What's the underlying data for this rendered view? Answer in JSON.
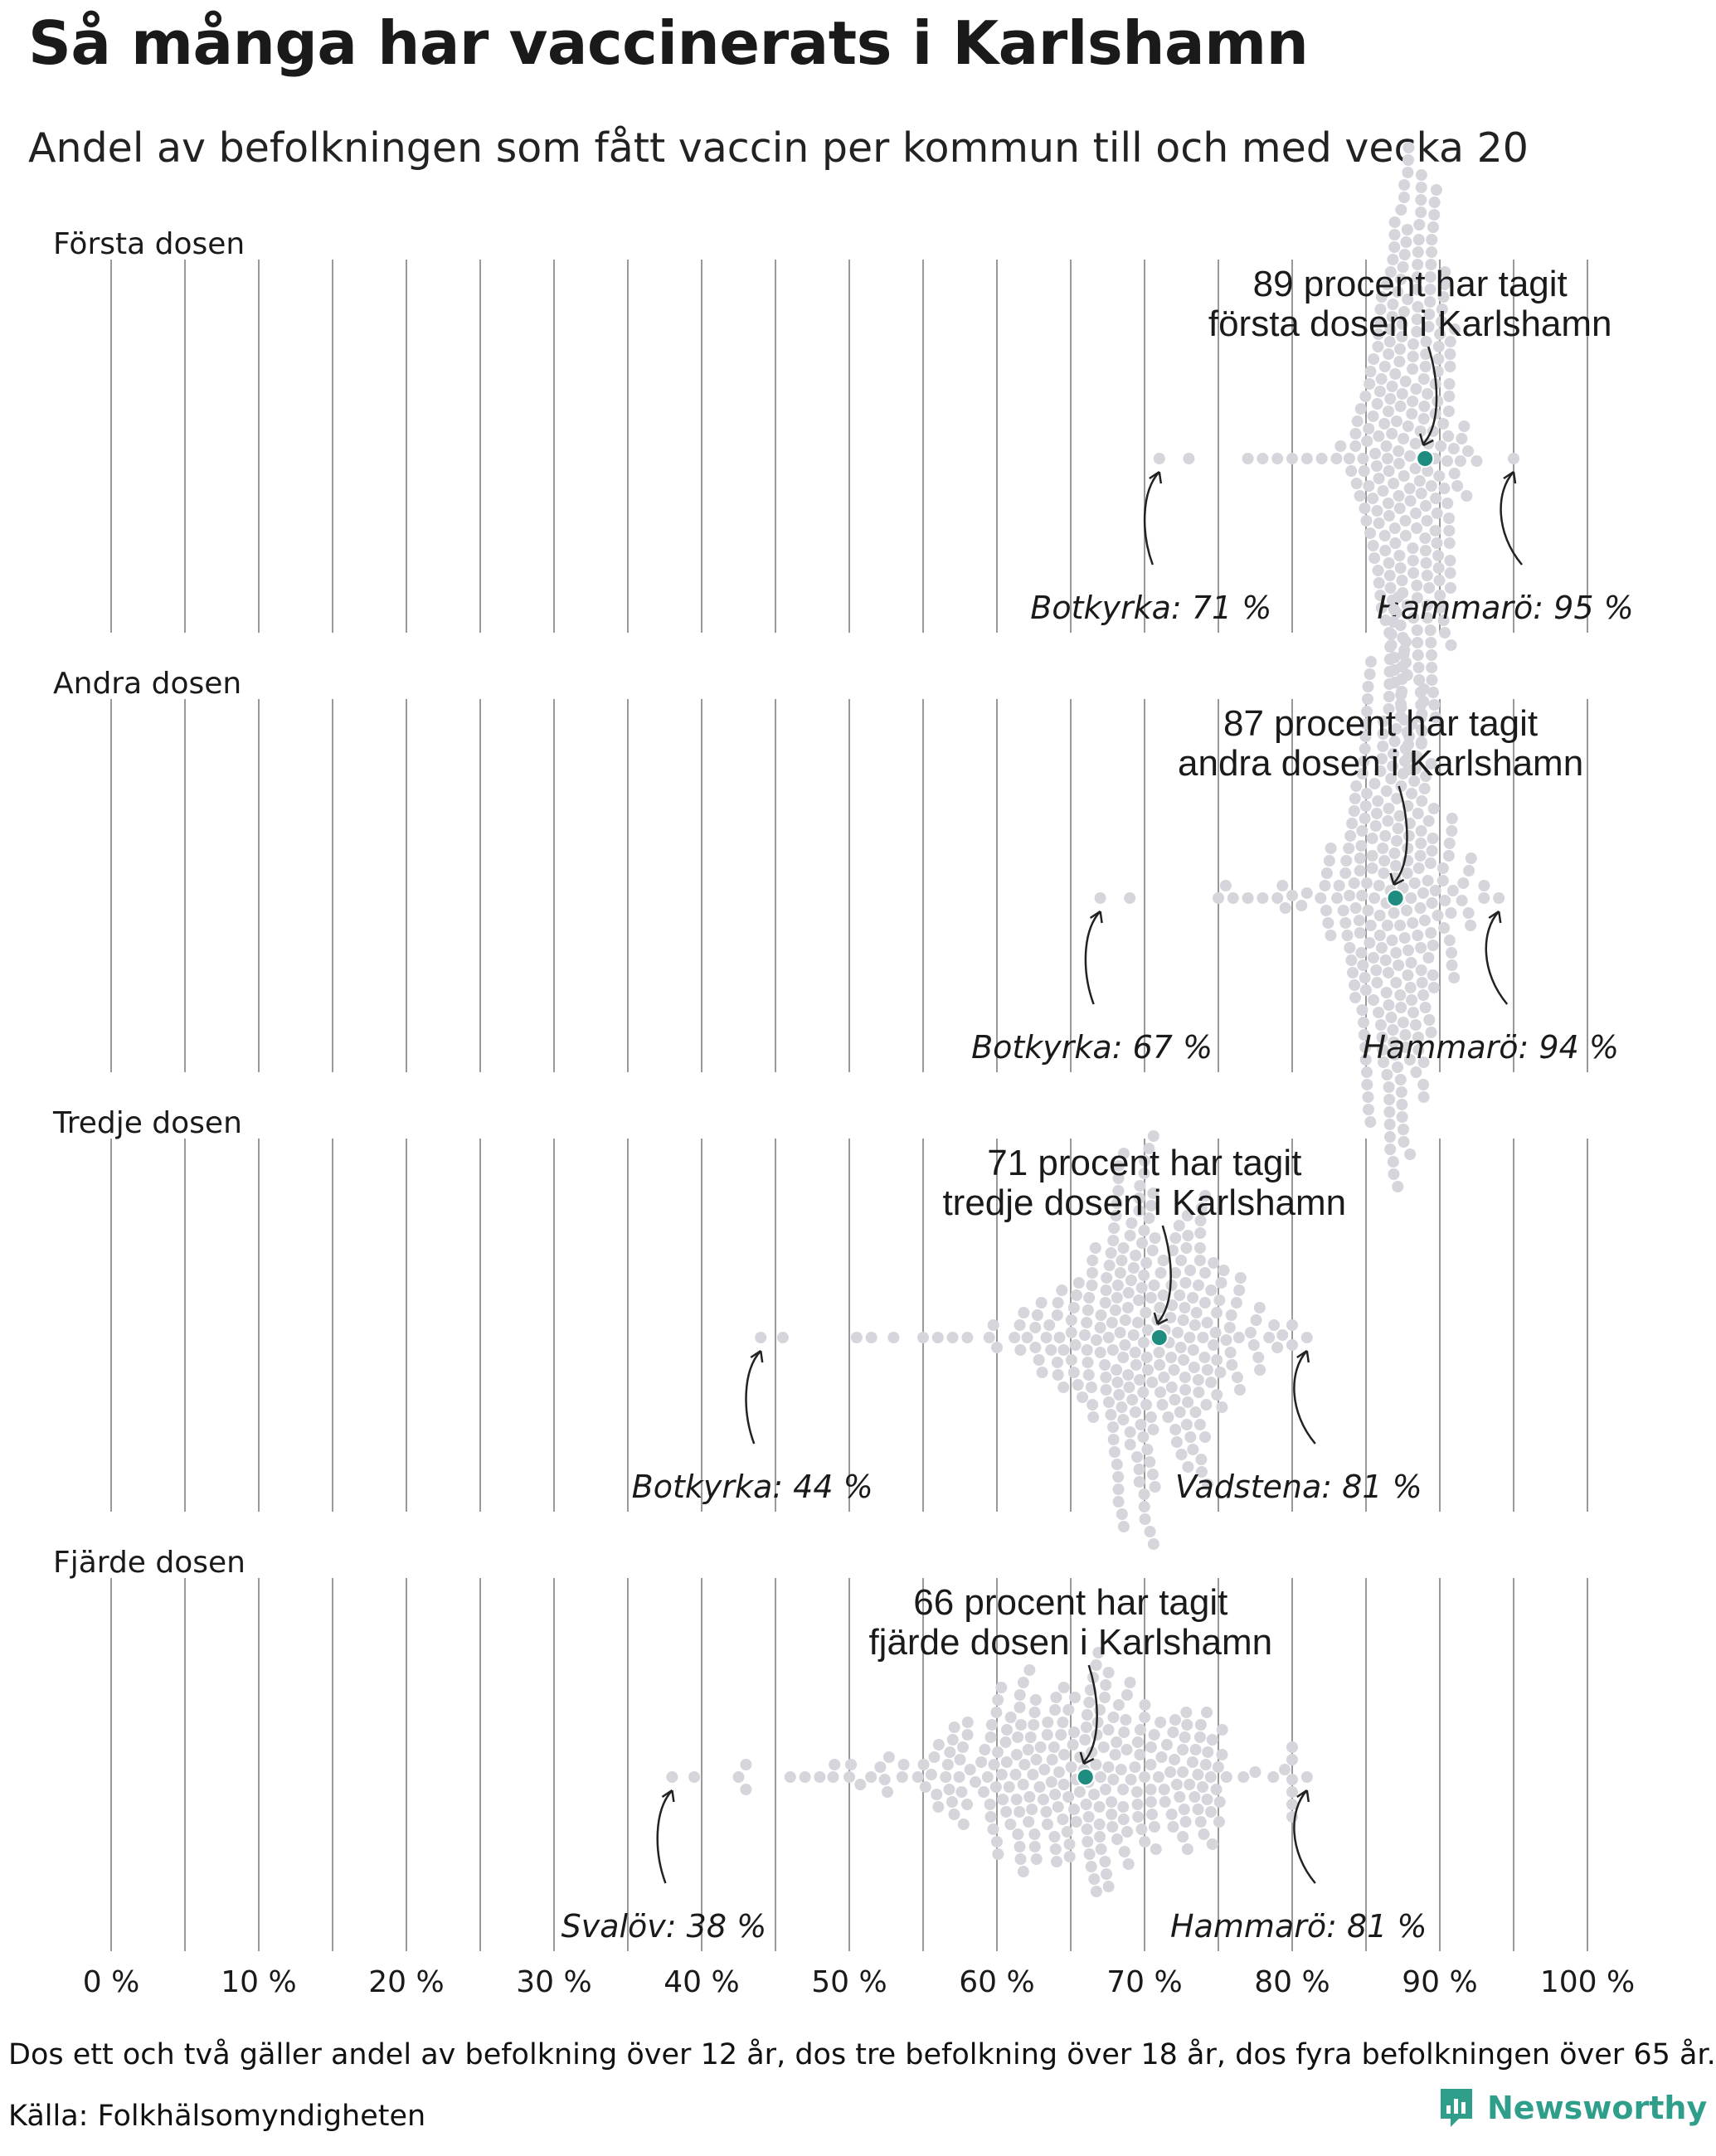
{
  "title": "Så många har vaccinerats i Karlshamn",
  "subtitle": "Andel av befolkningen som fått vaccin per kommun till och med vecka 20",
  "footnote": "Dos ett och två gäller andel av befolkning över 12 år, dos tre befolkning över 18 år, dos fyra befolkningen över 65 år.",
  "source": "Källa: Folkhälsomyndigheten",
  "brand": {
    "name": "Newsworthy"
  },
  "colors": {
    "dot": "#d6d5db",
    "highlight": "#1e8c7e",
    "grid": "#999999",
    "text": "#1a1a1a"
  },
  "chart_data": {
    "type": "scatter",
    "subtype": "beeswarm",
    "x_range": [
      0,
      100
    ],
    "x_ticks": [
      0,
      10,
      20,
      30,
      40,
      50,
      60,
      70,
      80,
      90,
      100
    ],
    "x_tick_labels": [
      "0 %",
      "10 %",
      "20 %",
      "30 %",
      "40 %",
      "50 %",
      "60 %",
      "70 %",
      "80 %",
      "90 %",
      "100 %"
    ],
    "highlight_municipality": "Karlshamn",
    "panels": [
      {
        "label": "Första dosen",
        "highlight_value": 89,
        "annotation": [
          "89 procent har tagit",
          "första dosen i Karlshamn"
        ],
        "min": {
          "name": "Botkyrka",
          "value": 71,
          "label": "Botkyrka: 71 %"
        },
        "max": {
          "name": "Hammarö",
          "value": 95,
          "label": "Hammarö: 95 %"
        },
        "distribution": {
          "center": 88,
          "spread": 1.8
        },
        "outliers": [
          71,
          73,
          77,
          78,
          79,
          80,
          81,
          82,
          83,
          84,
          95
        ]
      },
      {
        "label": "Andra dosen",
        "highlight_value": 87,
        "annotation": [
          "87 procent har tagit",
          "andra dosen i Karlshamn"
        ],
        "min": {
          "name": "Botkyrka",
          "value": 67,
          "label": "Botkyrka: 67 %"
        },
        "max": {
          "name": "Hammarö",
          "value": 94,
          "label": "Hammarö: 94 %"
        },
        "distribution": {
          "center": 87,
          "spread": 2.2
        },
        "outliers": [
          67,
          69,
          75,
          75.5,
          76,
          77,
          78,
          79,
          80,
          81,
          94
        ]
      },
      {
        "label": "Tredje dosen",
        "highlight_value": 71,
        "annotation": [
          "71 procent har tagit",
          "tredje dosen i Karlshamn"
        ],
        "min": {
          "name": "Botkyrka",
          "value": 44,
          "label": "Botkyrka: 44 %"
        },
        "max": {
          "name": "Vadstena",
          "value": 81,
          "label": "Vadstena: 81 %"
        },
        "distribution": {
          "center": 70,
          "spread": 4
        },
        "outliers": [
          44,
          45.5,
          50.5,
          51.5,
          53,
          55,
          56,
          57,
          58,
          60,
          80,
          81
        ]
      },
      {
        "label": "Fjärde dosen",
        "highlight_value": 66,
        "annotation": [
          "66 procent har tagit",
          "fjärde dosen i Karlshamn"
        ],
        "min": {
          "name": "Svalöv",
          "value": 38,
          "label": "Svalöv: 38 %"
        },
        "max": {
          "name": "Hammarö",
          "value": 81,
          "label": "Hammarö: 81 %"
        },
        "distribution": {
          "center": 66,
          "spread": 6
        },
        "outliers": [
          38,
          39.5,
          42.5,
          43,
          46,
          47,
          48,
          49,
          50,
          80,
          81
        ]
      }
    ]
  }
}
